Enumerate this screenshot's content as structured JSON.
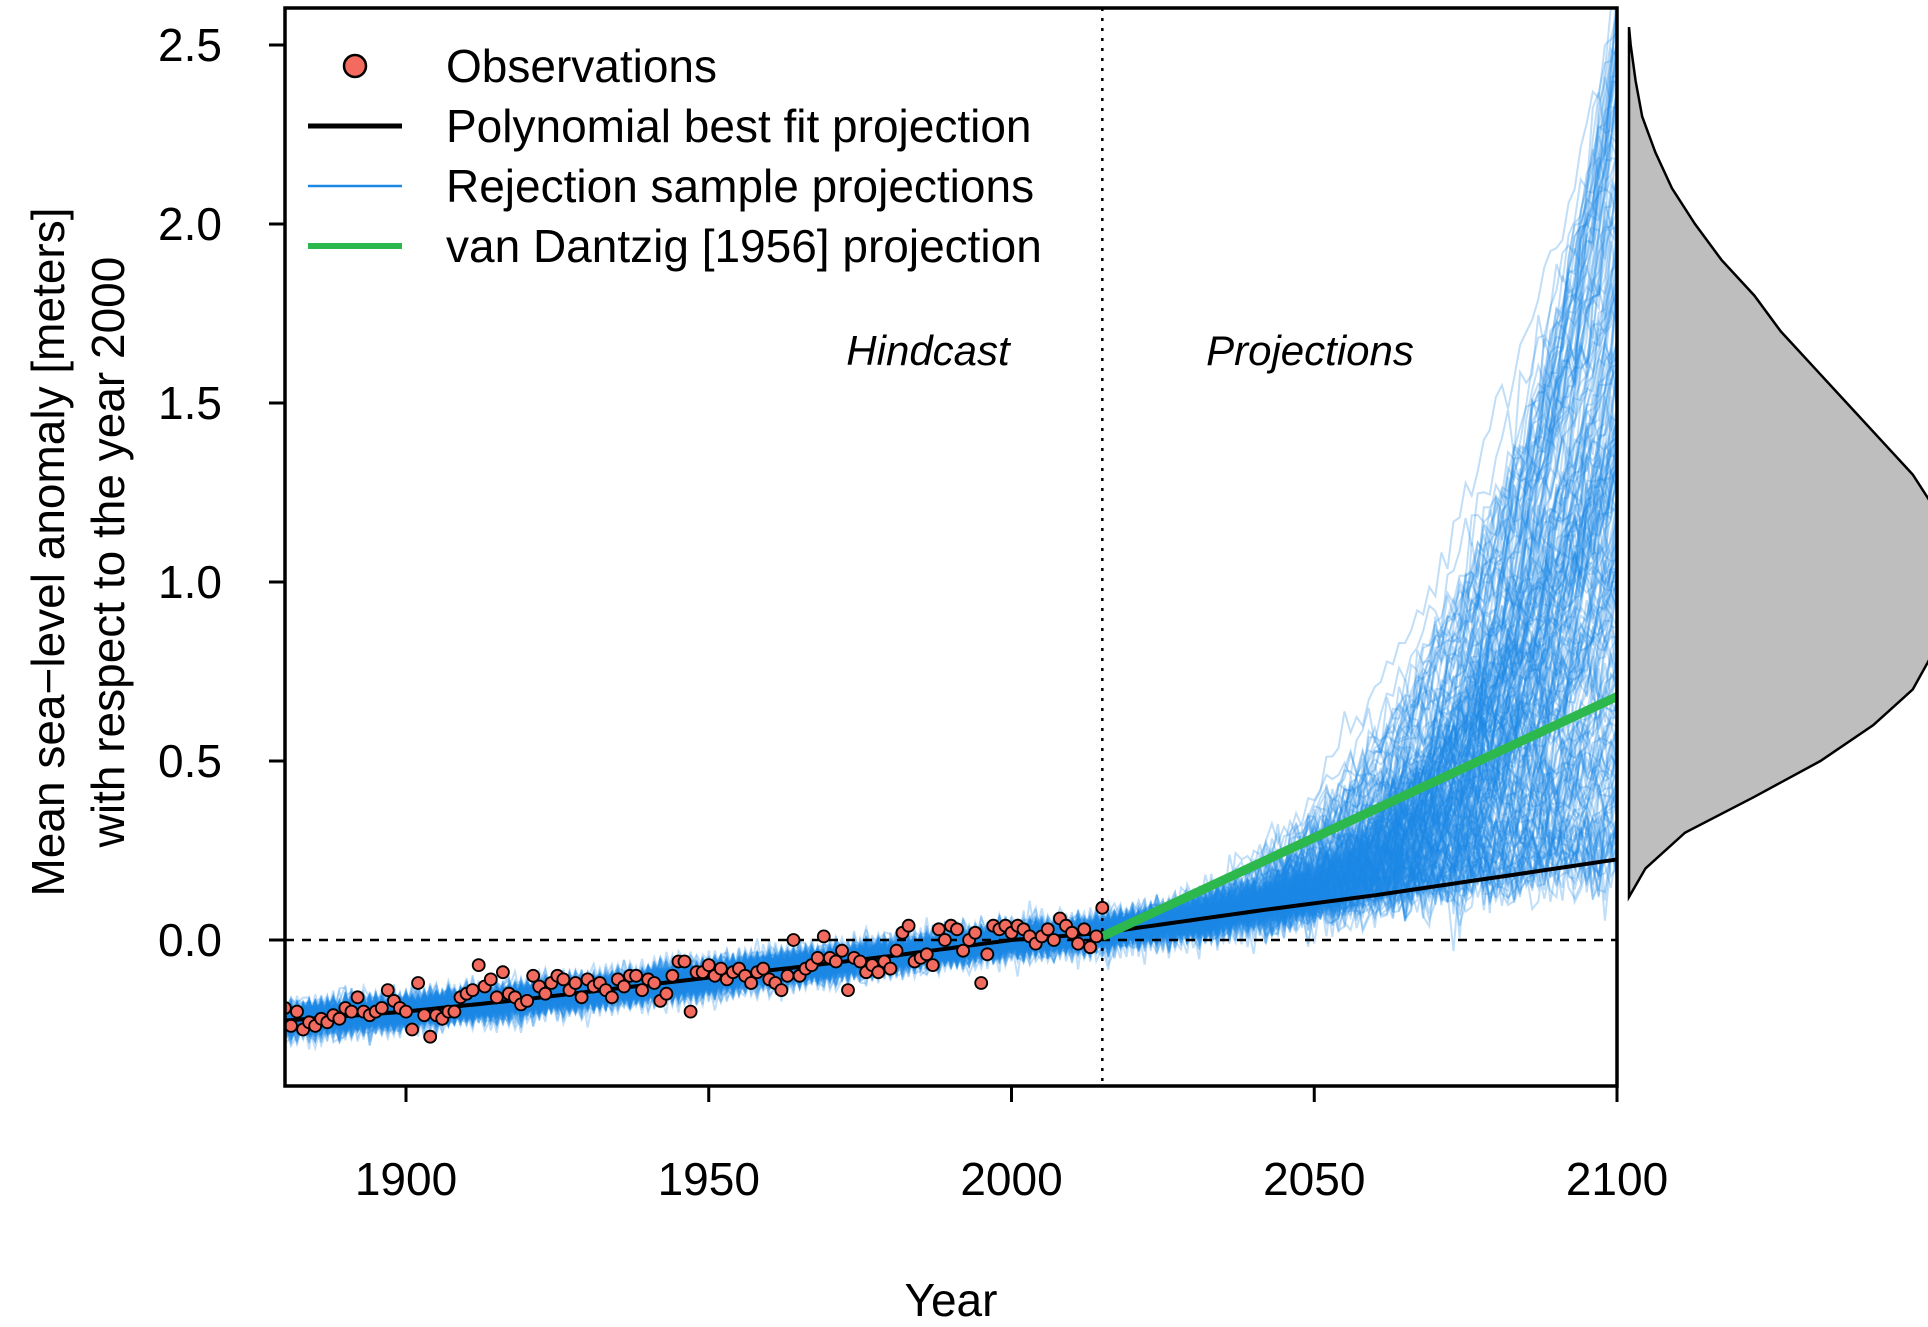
{
  "chart_data": {
    "type": "line",
    "xlabel": "Year",
    "ylabel_lines": [
      "Mean sea−level anomaly [meters]",
      "with respect to the year 2000"
    ],
    "xlim": [
      1880,
      2100
    ],
    "ylim": [
      -0.35,
      2.6
    ],
    "x_ticks": [
      1900,
      1950,
      2000,
      2050,
      2100
    ],
    "x_tick_labels": [
      "1900",
      "1950",
      "2000",
      "2050",
      "2100"
    ],
    "y_ticks": [
      0.0,
      0.5,
      1.0,
      1.5,
      2.0,
      2.5
    ],
    "y_tick_labels": [
      "0.0",
      "0.5",
      "1.0",
      "1.5",
      "2.0",
      "2.5"
    ],
    "divider_year": 2015,
    "zero_reference_line": 0.0,
    "regions": {
      "hindcast": "Hindcast",
      "projections": "Projections"
    },
    "legend": {
      "position": "top-left",
      "entries": [
        {
          "label": "Observations",
          "kind": "point",
          "color": "#F26B5E"
        },
        {
          "label": "Polynomial best fit projection",
          "kind": "line",
          "color": "#000000"
        },
        {
          "label": "Rejection sample projections",
          "kind": "line",
          "color": "#1E88E5"
        },
        {
          "label": "van Dantzig [1956] projection",
          "kind": "line",
          "color": "#2DB84D"
        }
      ]
    },
    "series": [
      {
        "name": "Polynomial best fit projection",
        "color": "#000000",
        "x": [
          1880,
          1900,
          1920,
          1940,
          1960,
          1980,
          2000,
          2015,
          2040,
          2060,
          2080,
          2100
        ],
        "values": [
          -0.225,
          -0.2,
          -0.165,
          -0.125,
          -0.085,
          -0.045,
          0.0,
          0.02,
          0.08,
          0.125,
          0.175,
          0.225
        ]
      },
      {
        "name": "van Dantzig [1956] projection",
        "color": "#2DB84D",
        "x": [
          2015,
          2100
        ],
        "values": [
          0.01,
          0.68
        ]
      },
      {
        "name": "Observations",
        "color": "#F26B5E",
        "x": [
          1880,
          1881,
          1882,
          1883,
          1884,
          1885,
          1886,
          1887,
          1888,
          1889,
          1890,
          1891,
          1892,
          1893,
          1894,
          1895,
          1896,
          1897,
          1898,
          1899,
          1900,
          1901,
          1902,
          1903,
          1904,
          1905,
          1906,
          1907,
          1908,
          1909,
          1910,
          1911,
          1912,
          1913,
          1914,
          1915,
          1916,
          1917,
          1918,
          1919,
          1920,
          1921,
          1922,
          1923,
          1924,
          1925,
          1926,
          1927,
          1928,
          1929,
          1930,
          1931,
          1932,
          1933,
          1934,
          1935,
          1936,
          1937,
          1938,
          1939,
          1940,
          1941,
          1942,
          1943,
          1944,
          1945,
          1946,
          1947,
          1948,
          1949,
          1950,
          1951,
          1952,
          1953,
          1954,
          1955,
          1956,
          1957,
          1958,
          1959,
          1960,
          1961,
          1962,
          1963,
          1964,
          1965,
          1966,
          1967,
          1968,
          1969,
          1970,
          1971,
          1972,
          1973,
          1974,
          1975,
          1976,
          1977,
          1978,
          1979,
          1980,
          1981,
          1982,
          1983,
          1984,
          1985,
          1986,
          1987,
          1988,
          1989,
          1990,
          1991,
          1992,
          1993,
          1994,
          1995,
          1996,
          1997,
          1998,
          1999,
          2000,
          2001,
          2002,
          2003,
          2004,
          2005,
          2006,
          2007,
          2008,
          2009,
          2010,
          2011,
          2012,
          2013,
          2014,
          2015
        ],
        "values": [
          -0.19,
          -0.24,
          -0.2,
          -0.25,
          -0.23,
          -0.24,
          -0.22,
          -0.23,
          -0.21,
          -0.22,
          -0.19,
          -0.2,
          -0.16,
          -0.2,
          -0.21,
          -0.2,
          -0.19,
          -0.14,
          -0.17,
          -0.19,
          -0.2,
          -0.25,
          -0.12,
          -0.21,
          -0.27,
          -0.21,
          -0.22,
          -0.2,
          -0.2,
          -0.16,
          -0.15,
          -0.14,
          -0.07,
          -0.13,
          -0.11,
          -0.16,
          -0.09,
          -0.15,
          -0.16,
          -0.18,
          -0.17,
          -0.1,
          -0.13,
          -0.15,
          -0.12,
          -0.1,
          -0.11,
          -0.14,
          -0.12,
          -0.16,
          -0.11,
          -0.13,
          -0.12,
          -0.14,
          -0.16,
          -0.11,
          -0.13,
          -0.1,
          -0.1,
          -0.14,
          -0.11,
          -0.12,
          -0.17,
          -0.15,
          -0.1,
          -0.06,
          -0.06,
          -0.2,
          -0.09,
          -0.09,
          -0.07,
          -0.1,
          -0.08,
          -0.11,
          -0.09,
          -0.08,
          -0.1,
          -0.12,
          -0.09,
          -0.08,
          -0.11,
          -0.12,
          -0.14,
          -0.1,
          0.0,
          -0.1,
          -0.08,
          -0.07,
          -0.05,
          0.01,
          -0.05,
          -0.06,
          -0.03,
          -0.14,
          -0.05,
          -0.06,
          -0.09,
          -0.07,
          -0.09,
          -0.06,
          -0.08,
          -0.03,
          0.02,
          0.04,
          -0.06,
          -0.05,
          -0.04,
          -0.07,
          0.03,
          0.0,
          0.04,
          0.03,
          -0.03,
          0.0,
          0.02,
          -0.12,
          -0.04,
          0.04,
          0.03,
          0.04,
          0.02,
          0.04,
          0.03,
          0.01,
          -0.01,
          0.01,
          0.03,
          0.0,
          0.06,
          0.04,
          0.02,
          -0.01,
          0.03,
          -0.02,
          0.01,
          0.09
        ]
      }
    ],
    "rejection_samples": {
      "name": "Rejection sample projections",
      "color": "#1E88E5",
      "count": 220,
      "end_value_range_2100": [
        0.2,
        2.6
      ]
    },
    "marginal_density": {
      "variable": "sea-level anomaly in 2100",
      "y_values": [
        0.12,
        0.2,
        0.3,
        0.4,
        0.5,
        0.6,
        0.7,
        0.8,
        0.9,
        1.0,
        1.1,
        1.2,
        1.3,
        1.4,
        1.5,
        1.6,
        1.7,
        1.8,
        1.9,
        2.0,
        2.1,
        2.2,
        2.3,
        2.4,
        2.5,
        2.55
      ],
      "density": [
        0.0,
        0.05,
        0.17,
        0.38,
        0.58,
        0.74,
        0.86,
        0.92,
        0.96,
        1.0,
        0.97,
        0.93,
        0.86,
        0.76,
        0.66,
        0.56,
        0.46,
        0.38,
        0.28,
        0.2,
        0.13,
        0.08,
        0.04,
        0.02,
        0.005,
        0.0
      ],
      "fill": "#BEBEBE"
    }
  }
}
